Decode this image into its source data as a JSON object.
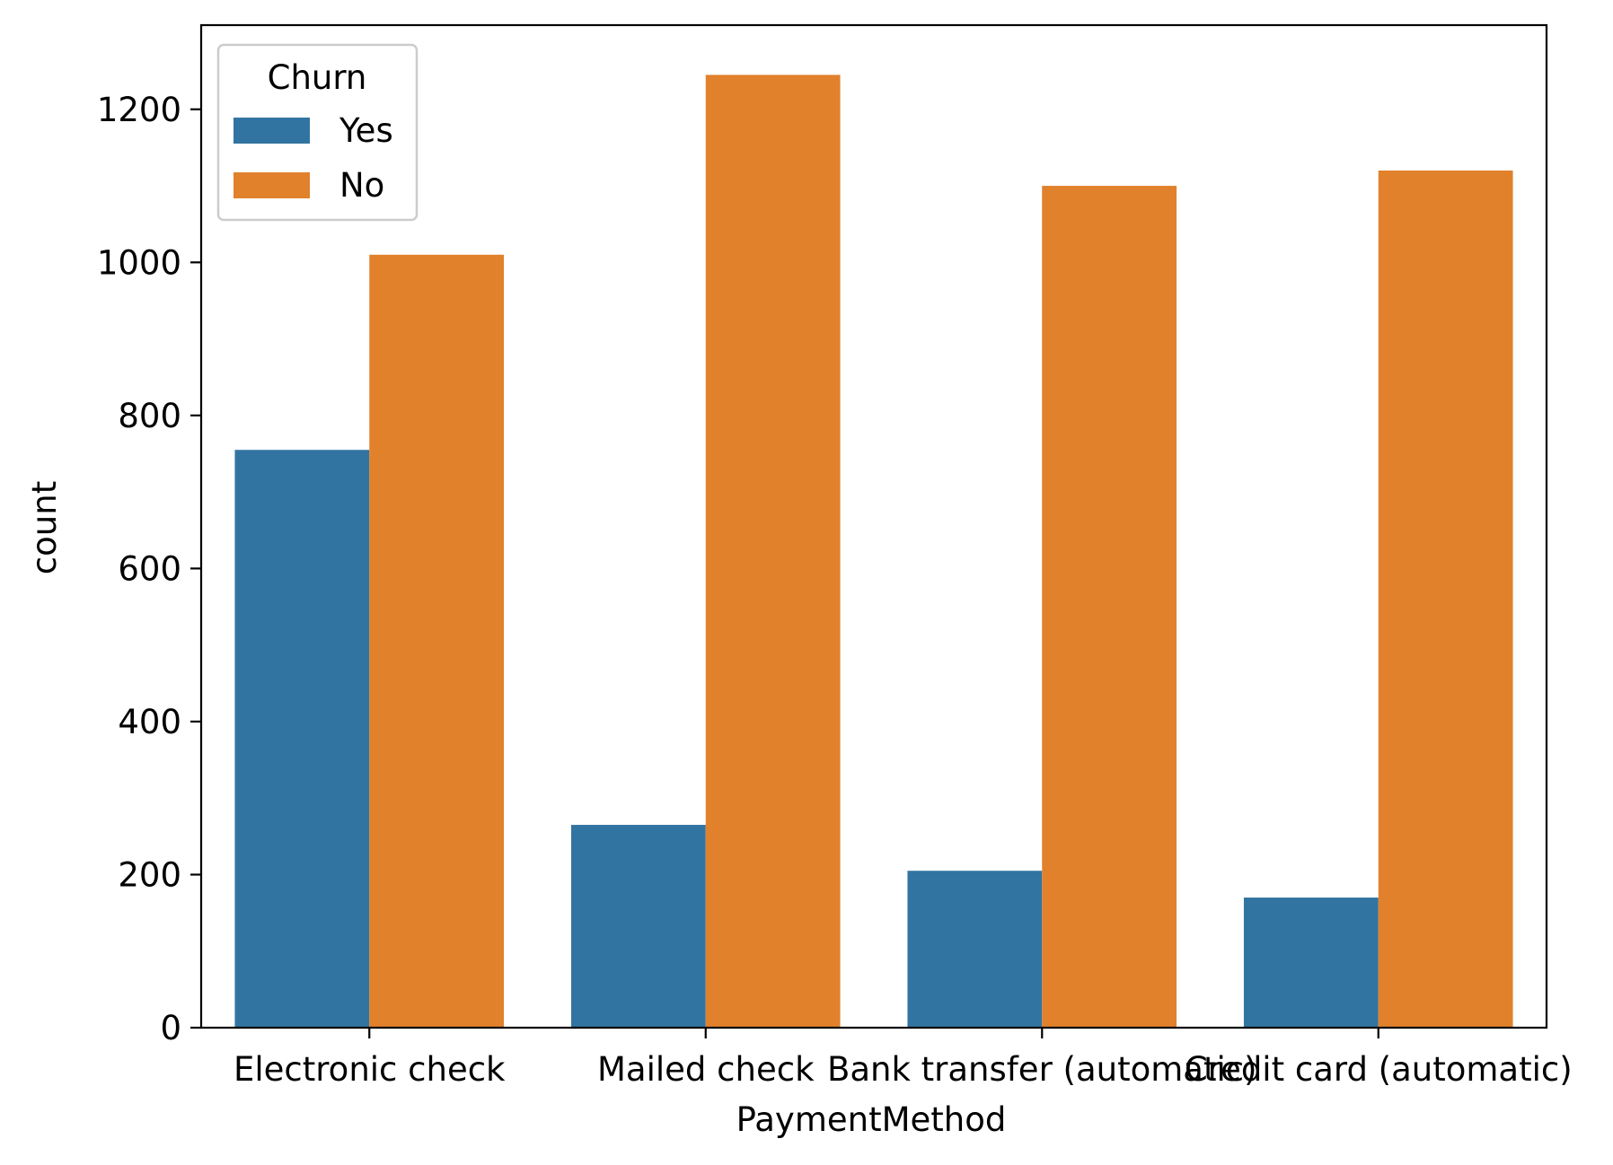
{
  "chart_data": {
    "type": "bar",
    "xlabel": "PaymentMethod",
    "ylabel": "count",
    "categories": [
      "Electronic check",
      "Mailed check",
      "Bank transfer (automatic)",
      "Credit card (automatic)"
    ],
    "series": [
      {
        "name": "Yes",
        "color": "#3274a1",
        "values": [
          755,
          265,
          205,
          170
        ]
      },
      {
        "name": "No",
        "color": "#e1812c",
        "values": [
          1010,
          1245,
          1100,
          1120
        ]
      }
    ],
    "ylim": [
      0,
      1310
    ],
    "yticks": [
      0,
      200,
      400,
      600,
      800,
      1000,
      1200
    ],
    "grid": false,
    "legend": {
      "title": "Churn",
      "placement": "top-left"
    }
  }
}
